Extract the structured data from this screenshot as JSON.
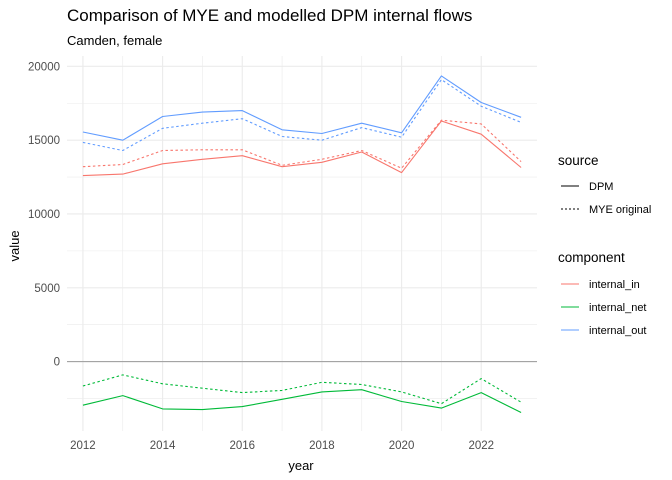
{
  "chart_data": {
    "type": "line",
    "title": "Comparison of MYE and modelled DPM internal flows",
    "subtitle": "Camden, female",
    "xlabel": "year",
    "ylabel": "value",
    "xlim": [
      2011.6,
      2023.4
    ],
    "ylim": [
      -4700,
      20700
    ],
    "x_ticks": [
      2012,
      2014,
      2016,
      2018,
      2020,
      2022
    ],
    "y_ticks": [
      0,
      5000,
      10000,
      15000,
      20000
    ],
    "y_tick_labels": [
      "0",
      "5000",
      "10000",
      "15000",
      "20000"
    ],
    "grid": true,
    "zero_line": true,
    "x": [
      2012,
      2013,
      2014,
      2015,
      2016,
      2017,
      2018,
      2019,
      2020,
      2021,
      2022,
      2023
    ],
    "colors": {
      "internal_in": "#f8766d",
      "internal_net": "#00ba38",
      "internal_out": "#619cff"
    },
    "linetypes": {
      "DPM": "solid",
      "MYE original": "dotted"
    },
    "legends": [
      {
        "title": "source",
        "entries": [
          {
            "label": "DPM",
            "linetype": "solid"
          },
          {
            "label": "MYE original",
            "linetype": "dotted"
          }
        ]
      },
      {
        "title": "component",
        "entries": [
          {
            "label": "internal_in",
            "component": "internal_in"
          },
          {
            "label": "internal_net",
            "component": "internal_net"
          },
          {
            "label": "internal_out",
            "component": "internal_out"
          }
        ]
      }
    ],
    "legend_position": "right",
    "series": [
      {
        "component": "internal_out",
        "source": "DPM",
        "values": [
          15550,
          15000,
          16600,
          16900,
          17000,
          15700,
          15450,
          16150,
          15500,
          19350,
          17550,
          16550
        ]
      },
      {
        "component": "internal_out",
        "source": "MYE original",
        "values": [
          14850,
          14300,
          15800,
          16150,
          16450,
          15250,
          15000,
          15850,
          15200,
          19100,
          17300,
          16200
        ]
      },
      {
        "component": "internal_in",
        "source": "DPM",
        "values": [
          12600,
          12700,
          13400,
          13700,
          13950,
          13200,
          13500,
          14200,
          12800,
          16300,
          15400,
          13150
        ]
      },
      {
        "component": "internal_in",
        "source": "MYE original",
        "values": [
          13200,
          13350,
          14300,
          14350,
          14350,
          13300,
          13700,
          14300,
          13100,
          16350,
          16100,
          13550
        ]
      },
      {
        "component": "internal_net",
        "source": "DPM",
        "values": [
          -2950,
          -2300,
          -3200,
          -3250,
          -3050,
          -2550,
          -2050,
          -1900,
          -2700,
          -3150,
          -2100,
          -3450
        ]
      },
      {
        "component": "internal_net",
        "source": "MYE original",
        "values": [
          -1650,
          -900,
          -1500,
          -1800,
          -2100,
          -1950,
          -1400,
          -1550,
          -2050,
          -2850,
          -1150,
          -2750
        ]
      }
    ]
  }
}
